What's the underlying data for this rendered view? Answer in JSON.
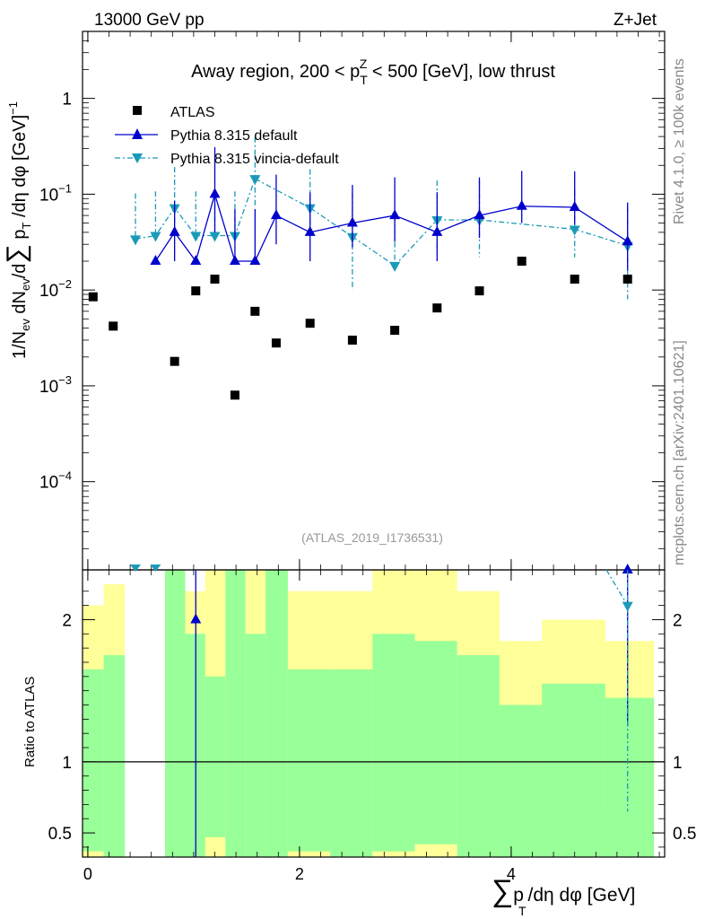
{
  "header": {
    "left": "13000 GeV pp",
    "right": "Z+Jet",
    "side_rivet": "Rivet 4.1.0, ≥ 100k events",
    "side_mcplots": "mcplots.cern.ch [arXiv:2401.10621]"
  },
  "chart_data": {
    "type": "scatter",
    "title_prefix": "Away region, 200 < p",
    "title_sup": "Z",
    "title_sub": "T",
    "title_suffix": " < 500 [GeV], low thrust",
    "watermark": "(ATLAS_2019_I1736531)",
    "ylabel_main": "1/N_ev dN_ev/d∑p_T/dη dφ [GeV]^-1",
    "ylabel_ratio": "Ratio to ATLAS",
    "xlabel": "∑ p_T /dη dφ [GeV]",
    "xlim": [
      -0.05,
      5.45
    ],
    "ylim_main": [
      1.2e-05,
      5.0
    ],
    "ylim_ratio": [
      0.33,
      2.35
    ],
    "x_ticks": [
      {
        "v": 0,
        "label": "0"
      },
      {
        "v": 2,
        "label": "2"
      },
      {
        "v": 4,
        "label": "4"
      }
    ],
    "y_ticks_main": [
      {
        "v": 1,
        "label": "1"
      },
      {
        "v": 0.1,
        "label": "10",
        "exp": "−1"
      },
      {
        "v": 0.01,
        "label": "10",
        "exp": "−2"
      },
      {
        "v": 0.001,
        "label": "10",
        "exp": "−3"
      },
      {
        "v": 0.0001,
        "label": "10",
        "exp": "−4"
      }
    ],
    "y_ticks_ratio": [
      {
        "v": 0.5,
        "label": "0.5"
      },
      {
        "v": 1,
        "label": "1"
      },
      {
        "v": 2,
        "label": "2"
      }
    ],
    "legend": {
      "position": "top-left",
      "entries": [
        "ATLAS",
        "Pythia 8.315 default",
        "Pythia 8.315 vincia-default"
      ]
    },
    "series": [
      {
        "name": "ATLAS",
        "color": "#000000",
        "x": [
          0.05,
          0.24,
          0.82,
          1.02,
          1.2,
          1.39,
          1.58,
          1.78,
          2.1,
          2.5,
          2.9,
          3.3,
          3.7,
          4.1,
          4.6,
          5.1
        ],
        "y": [
          0.0085,
          0.0042,
          0.0018,
          0.0098,
          0.013,
          0.0008,
          0.006,
          0.0028,
          0.0045,
          0.003,
          0.0038,
          0.0065,
          0.0098,
          0.02,
          0.013,
          0.013
        ]
      },
      {
        "name": "Pythia 8.315 default",
        "color": "#0000cc",
        "x": [
          0.64,
          0.82,
          1.02,
          1.2,
          1.39,
          1.58,
          1.78,
          2.1,
          2.5,
          2.9,
          3.3,
          3.7,
          4.1,
          4.6,
          5.1
        ],
        "y": [
          0.02,
          0.04,
          0.02,
          0.1,
          0.02,
          0.02,
          0.06,
          0.04,
          0.05,
          0.06,
          0.04,
          0.06,
          0.075,
          0.073,
          0.032
        ],
        "err_lo": [
          1e-07,
          0.02,
          1e-07,
          0.06,
          1e-07,
          1e-07,
          0.03,
          0.02,
          0.022,
          0.028,
          0.02,
          0.025,
          0.025,
          0.025,
          0.016
        ],
        "err_hi": [
          1e-07,
          0.045,
          1e-07,
          0.21,
          0.05,
          0.05,
          0.1,
          0.065,
          0.075,
          0.09,
          0.065,
          0.09,
          0.1,
          0.1,
          0.05
        ]
      },
      {
        "name": "Pythia 8.315 vincia-default",
        "color": "#1a9ab8",
        "x": [
          0.45,
          0.64,
          0.82,
          1.02,
          1.2,
          1.39,
          1.58,
          2.1,
          2.5,
          2.9,
          3.3,
          3.7,
          4.6,
          5.1
        ],
        "y": [
          0.034,
          0.037,
          0.072,
          0.037,
          0.037,
          0.037,
          0.145,
          0.072,
          0.036,
          0.018,
          0.054,
          0.054,
          0.043,
          0.029
        ],
        "err_lo": [
          1e-07,
          1e-07,
          0.036,
          1e-07,
          1e-07,
          1e-07,
          0.07,
          0.035,
          0.026,
          1e-07,
          0.028,
          0.032,
          0.021,
          0.021
        ],
        "err_hi": [
          0.068,
          0.07,
          0.12,
          0.07,
          0.07,
          0.07,
          0.25,
          0.11,
          0.065,
          0.04,
          0.085,
          0.083,
          0.066,
          0.045
        ]
      }
    ],
    "ratio_bands": [
      {
        "x0": -0.05,
        "x1": 0.15,
        "g_lo": 0.37,
        "g_hi": 1.65,
        "y_lo": 0.33,
        "y_hi": 2.1
      },
      {
        "x0": 0.15,
        "x1": 0.35,
        "g_lo": 0.33,
        "g_hi": 1.75,
        "y_lo": 0.33,
        "y_hi": 2.25
      },
      {
        "x0": 0.73,
        "x1": 0.92,
        "g_lo": 0.33,
        "g_hi": 2.35,
        "y_lo": 0.33,
        "y_hi": 2.35
      },
      {
        "x0": 0.92,
        "x1": 1.11,
        "g_lo": 0.33,
        "g_hi": 1.9,
        "y_lo": 0.33,
        "y_hi": 2.2
      },
      {
        "x0": 1.11,
        "x1": 1.3,
        "g_lo": 0.47,
        "g_hi": 1.6,
        "y_lo": 0.33,
        "y_hi": 2.35
      },
      {
        "x0": 1.3,
        "x1": 1.49,
        "g_lo": 0.33,
        "g_hi": 2.35,
        "y_lo": 0.33,
        "y_hi": 2.35
      },
      {
        "x0": 1.49,
        "x1": 1.68,
        "g_lo": 0.33,
        "g_hi": 1.9,
        "y_lo": 0.33,
        "y_hi": 2.35
      },
      {
        "x0": 1.68,
        "x1": 1.89,
        "g_lo": 0.33,
        "g_hi": 2.35,
        "y_lo": 0.33,
        "y_hi": 2.35
      },
      {
        "x0": 1.89,
        "x1": 2.29,
        "g_lo": 0.37,
        "g_hi": 1.65,
        "y_lo": 0.33,
        "y_hi": 2.2
      },
      {
        "x0": 2.29,
        "x1": 2.69,
        "g_lo": 0.33,
        "g_hi": 1.65,
        "y_lo": 0.33,
        "y_hi": 2.2
      },
      {
        "x0": 2.69,
        "x1": 3.09,
        "g_lo": 0.37,
        "g_hi": 1.9,
        "y_lo": 0.33,
        "y_hi": 2.35
      },
      {
        "x0": 3.09,
        "x1": 3.49,
        "g_lo": 0.42,
        "g_hi": 1.85,
        "y_lo": 0.33,
        "y_hi": 2.35
      },
      {
        "x0": 3.49,
        "x1": 3.89,
        "g_lo": 0.33,
        "g_hi": 1.75,
        "y_lo": 0.33,
        "y_hi": 2.2
      },
      {
        "x0": 3.89,
        "x1": 4.29,
        "g_lo": 0.33,
        "g_hi": 1.4,
        "y_lo": 0.65,
        "y_hi": 1.85
      },
      {
        "x0": 4.29,
        "x1": 4.89,
        "g_lo": 0.33,
        "g_hi": 1.55,
        "y_lo": 0.6,
        "y_hi": 2.0
      },
      {
        "x0": 4.89,
        "x1": 5.35,
        "g_lo": 0.33,
        "g_hi": 1.45,
        "y_lo": 0.65,
        "y_hi": 1.85
      }
    ],
    "ratio_series": [
      {
        "name": "Pythia 8.315 default",
        "x": [
          1.02,
          5.1
        ],
        "y": [
          2.0,
          2.35
        ],
        "err_lo": [
          1.7,
          1.1
        ],
        "err_hi": [
          0.4,
          0.1
        ]
      },
      {
        "name": "Pythia 8.315 vincia-default",
        "x": [
          5.1
        ],
        "y": [
          2.1
        ],
        "err_lo": [
          1.45
        ],
        "err_hi": [
          0.3
        ]
      }
    ],
    "colors": {
      "band_green": "#99ff99",
      "band_yellow": "#ffff99"
    }
  }
}
